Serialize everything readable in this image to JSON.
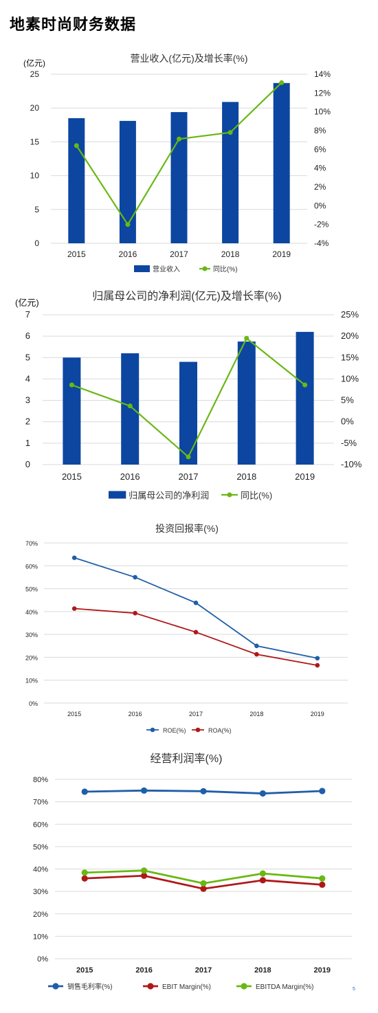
{
  "page": {
    "title": "地素时尚财务数据",
    "corner_mark": "5"
  },
  "colors": {
    "blue": "#0c46a0",
    "green": "#69b814",
    "line_blue": "#1f5ea8",
    "red": "#b01818",
    "grid": "#d9d9d9",
    "axis_text": "#222222"
  },
  "chart_data": [
    {
      "type": "bar+line",
      "title": "营业收入(亿元)及增长率(%)",
      "ylabel_left": "(亿元)",
      "categories": [
        "2015",
        "2016",
        "2017",
        "2018",
        "2019"
      ],
      "series": [
        {
          "name": "营业收入",
          "kind": "bar",
          "axis": "left",
          "values": [
            18.5,
            18.1,
            19.4,
            20.9,
            23.7
          ]
        },
        {
          "name": "同比(%)",
          "kind": "line",
          "axis": "right",
          "values": [
            6.4,
            -2.0,
            7.1,
            7.8,
            13.1
          ]
        }
      ],
      "ylim_left": [
        0,
        25
      ],
      "yticks_left": [
        "0",
        "5",
        "10",
        "15",
        "20",
        "25"
      ],
      "ylim_right": [
        -4,
        14
      ],
      "yticks_right": [
        "-4%",
        "-2%",
        "0%",
        "2%",
        "4%",
        "6%",
        "8%",
        "10%",
        "12%",
        "14%"
      ],
      "grid": true,
      "legend": "bottom"
    },
    {
      "type": "bar+line",
      "title": "归属母公司的净利润(亿元)及增长率(%)",
      "ylabel_left": "(亿元)",
      "categories": [
        "2015",
        "2016",
        "2017",
        "2018",
        "2019"
      ],
      "series": [
        {
          "name": "归属母公司的净利润",
          "kind": "bar",
          "axis": "left",
          "values": [
            5.0,
            5.2,
            4.8,
            5.75,
            6.2
          ]
        },
        {
          "name": "同比(%)",
          "kind": "line",
          "axis": "right",
          "values": [
            8.6,
            3.7,
            -8.2,
            19.5,
            8.6
          ]
        }
      ],
      "ylim_left": [
        0,
        7
      ],
      "yticks_left": [
        "0",
        "1",
        "2",
        "3",
        "4",
        "5",
        "6",
        "7"
      ],
      "ylim_right": [
        -10,
        25
      ],
      "yticks_right": [
        "-10%",
        "-5%",
        "0%",
        "5%",
        "10%",
        "15%",
        "20%",
        "25%"
      ],
      "grid": true,
      "legend": "bottom"
    },
    {
      "type": "line",
      "title": "投资回报率(%)",
      "categories": [
        "2015",
        "2016",
        "2017",
        "2018",
        "2019"
      ],
      "series": [
        {
          "name": "ROE(%)",
          "values": [
            63.5,
            55.0,
            43.8,
            25.0,
            19.6
          ]
        },
        {
          "name": "ROA(%)",
          "values": [
            41.3,
            39.3,
            31.0,
            21.3,
            16.5
          ]
        }
      ],
      "ylim": [
        0,
        70
      ],
      "yticks": [
        "0%",
        "10%",
        "20%",
        "30%",
        "40%",
        "50%",
        "60%",
        "70%"
      ],
      "grid": true,
      "legend": "bottom"
    },
    {
      "type": "line",
      "title": "经营利润率(%)",
      "categories": [
        "2015",
        "2016",
        "2017",
        "2018",
        "2019"
      ],
      "series": [
        {
          "name": "销售毛利率(%)",
          "values": [
            74.5,
            75.0,
            74.7,
            73.7,
            74.8
          ]
        },
        {
          "name": "EBIT Margin(%)",
          "values": [
            35.8,
            37.0,
            31.2,
            35.0,
            33.0
          ]
        },
        {
          "name": "EBITDA Margin(%)",
          "values": [
            38.4,
            39.3,
            33.6,
            38.0,
            35.8
          ]
        }
      ],
      "ylim": [
        0,
        80
      ],
      "yticks": [
        "0%",
        "10%",
        "20%",
        "30%",
        "40%",
        "50%",
        "60%",
        "70%",
        "80%"
      ],
      "grid": true,
      "legend": "bottom"
    }
  ]
}
